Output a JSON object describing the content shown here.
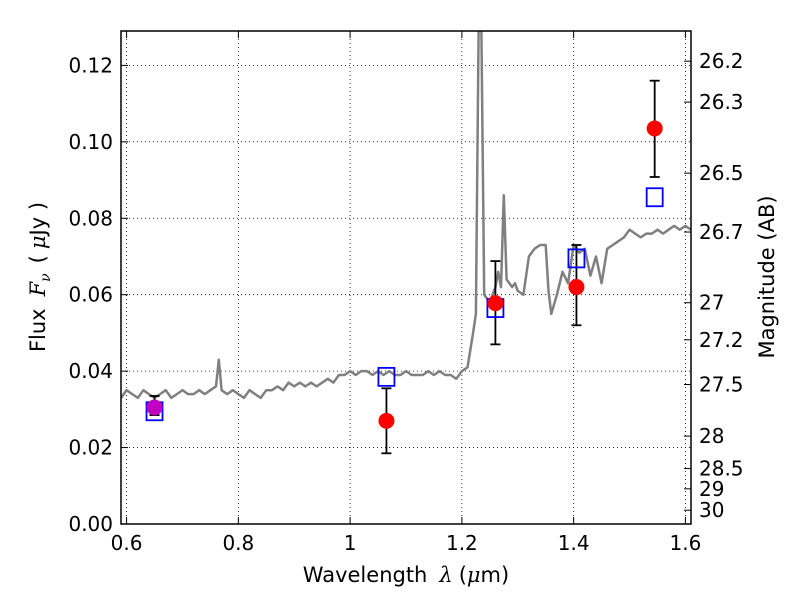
{
  "chart_data": {
    "type": "scatter",
    "xlabel": {
      "text": "Wavelength",
      "symbol": "λ",
      "unit_open": "(",
      "unit_mu": "μ",
      "unit_rest": "m)"
    },
    "ylabel": {
      "text": "Flux",
      "symbol": "F",
      "subscript": "ν",
      "unit_open": "(",
      "unit_mu": "μ",
      "unit_rest": "Jy )"
    },
    "y2label": "Magnitude (AB)",
    "xlim": [
      0.59,
      1.61
    ],
    "ylim": [
      0.0,
      0.129
    ],
    "x_ticks": [
      0.6,
      0.8,
      1.0,
      1.2,
      1.4,
      1.6
    ],
    "x_tick_labels": [
      "0.6",
      "0.8",
      "1",
      "1.2",
      "1.4",
      "1.6"
    ],
    "y_ticks": [
      0.0,
      0.02,
      0.04,
      0.06,
      0.08,
      0.1,
      0.12
    ],
    "y_tick_labels": [
      "0.00",
      "0.02",
      "0.04",
      "0.06",
      "0.08",
      "0.10",
      "0.12"
    ],
    "y2_ticks": [
      {
        "label": "26.2",
        "flux": 0.1211
      },
      {
        "label": "26.3",
        "flux": 0.1104
      },
      {
        "label": "26.5",
        "flux": 0.0918
      },
      {
        "label": "26.7",
        "flux": 0.0764
      },
      {
        "label": "27",
        "flux": 0.0579
      },
      {
        "label": "27.2",
        "flux": 0.0482
      },
      {
        "label": "27.5",
        "flux": 0.0365
      },
      {
        "label": "28",
        "flux": 0.023
      },
      {
        "label": "28.5",
        "flux": 0.0145
      },
      {
        "label": "29",
        "flux": 0.0092
      },
      {
        "label": "30",
        "flux": 0.0036
      }
    ],
    "grid": true,
    "colors": {
      "spectrum": "#808080",
      "observed": "#ff0000",
      "model": "#0000ff",
      "errorbar": "#000000",
      "overlap": "#bf00bf"
    },
    "spectrum": [
      [
        0.59,
        0.033
      ],
      [
        0.6,
        0.035
      ],
      [
        0.61,
        0.034
      ],
      [
        0.62,
        0.033
      ],
      [
        0.63,
        0.035
      ],
      [
        0.64,
        0.034
      ],
      [
        0.65,
        0.033
      ],
      [
        0.66,
        0.034
      ],
      [
        0.67,
        0.035
      ],
      [
        0.68,
        0.033
      ],
      [
        0.69,
        0.034
      ],
      [
        0.7,
        0.035
      ],
      [
        0.71,
        0.034
      ],
      [
        0.72,
        0.034
      ],
      [
        0.73,
        0.035
      ],
      [
        0.74,
        0.034
      ],
      [
        0.75,
        0.035
      ],
      [
        0.76,
        0.036
      ],
      [
        0.765,
        0.043
      ],
      [
        0.77,
        0.035
      ],
      [
        0.78,
        0.034
      ],
      [
        0.79,
        0.035
      ],
      [
        0.8,
        0.034
      ],
      [
        0.81,
        0.033
      ],
      [
        0.82,
        0.035
      ],
      [
        0.83,
        0.034
      ],
      [
        0.84,
        0.033
      ],
      [
        0.85,
        0.035
      ],
      [
        0.86,
        0.035
      ],
      [
        0.87,
        0.036
      ],
      [
        0.88,
        0.035
      ],
      [
        0.89,
        0.037
      ],
      [
        0.9,
        0.036
      ],
      [
        0.91,
        0.037
      ],
      [
        0.92,
        0.036
      ],
      [
        0.93,
        0.037
      ],
      [
        0.94,
        0.036
      ],
      [
        0.95,
        0.037
      ],
      [
        0.96,
        0.038
      ],
      [
        0.97,
        0.037
      ],
      [
        0.98,
        0.039
      ],
      [
        0.99,
        0.039
      ],
      [
        1.0,
        0.04
      ],
      [
        1.01,
        0.039
      ],
      [
        1.02,
        0.04
      ],
      [
        1.03,
        0.04
      ],
      [
        1.04,
        0.039
      ],
      [
        1.05,
        0.04
      ],
      [
        1.06,
        0.039
      ],
      [
        1.07,
        0.04
      ],
      [
        1.08,
        0.039
      ],
      [
        1.09,
        0.039
      ],
      [
        1.1,
        0.04
      ],
      [
        1.11,
        0.039
      ],
      [
        1.12,
        0.039
      ],
      [
        1.13,
        0.039
      ],
      [
        1.14,
        0.04
      ],
      [
        1.15,
        0.039
      ],
      [
        1.16,
        0.04
      ],
      [
        1.17,
        0.039
      ],
      [
        1.18,
        0.039
      ],
      [
        1.19,
        0.038
      ],
      [
        1.2,
        0.04
      ],
      [
        1.21,
        0.041
      ],
      [
        1.22,
        0.05
      ],
      [
        1.225,
        0.055
      ],
      [
        1.23,
        0.129
      ],
      [
        1.235,
        0.129
      ],
      [
        1.24,
        0.06
      ],
      [
        1.25,
        0.058
      ],
      [
        1.26,
        0.062
      ],
      [
        1.265,
        0.066
      ],
      [
        1.27,
        0.062
      ],
      [
        1.275,
        0.086
      ],
      [
        1.28,
        0.064
      ],
      [
        1.29,
        0.062
      ],
      [
        1.295,
        0.063
      ],
      [
        1.3,
        0.061
      ],
      [
        1.31,
        0.06
      ],
      [
        1.32,
        0.07
      ],
      [
        1.33,
        0.072
      ],
      [
        1.34,
        0.073
      ],
      [
        1.35,
        0.073
      ],
      [
        1.355,
        0.061
      ],
      [
        1.36,
        0.055
      ],
      [
        1.37,
        0.06
      ],
      [
        1.38,
        0.066
      ],
      [
        1.39,
        0.063
      ],
      [
        1.4,
        0.073
      ],
      [
        1.41,
        0.071
      ],
      [
        1.42,
        0.072
      ],
      [
        1.43,
        0.065
      ],
      [
        1.44,
        0.07
      ],
      [
        1.45,
        0.063
      ],
      [
        1.46,
        0.072
      ],
      [
        1.47,
        0.073
      ],
      [
        1.48,
        0.074
      ],
      [
        1.49,
        0.075
      ],
      [
        1.5,
        0.077
      ],
      [
        1.51,
        0.076
      ],
      [
        1.52,
        0.075
      ],
      [
        1.53,
        0.076
      ],
      [
        1.54,
        0.076
      ],
      [
        1.55,
        0.077
      ],
      [
        1.56,
        0.076
      ],
      [
        1.57,
        0.077
      ],
      [
        1.58,
        0.078
      ],
      [
        1.59,
        0.077
      ],
      [
        1.6,
        0.078
      ],
      [
        1.61,
        0.077
      ]
    ],
    "observed": [
      {
        "x": 0.65,
        "y": 0.0305,
        "yerr_low": 0.0285,
        "yerr_high": 0.0335
      },
      {
        "x": 1.065,
        "y": 0.027,
        "yerr_low": 0.0185,
        "yerr_high": 0.0355
      },
      {
        "x": 1.26,
        "y": 0.0578,
        "yerr_low": 0.047,
        "yerr_high": 0.0688
      },
      {
        "x": 1.405,
        "y": 0.062,
        "yerr_low": 0.052,
        "yerr_high": 0.073
      },
      {
        "x": 1.545,
        "y": 0.1035,
        "yerr_low": 0.0908,
        "yerr_high": 0.116
      }
    ],
    "model": [
      {
        "x": 0.65,
        "y": 0.0295
      },
      {
        "x": 1.065,
        "y": 0.0385
      },
      {
        "x": 1.26,
        "y": 0.0565
      },
      {
        "x": 1.405,
        "y": 0.0695
      },
      {
        "x": 1.545,
        "y": 0.0855
      }
    ]
  }
}
